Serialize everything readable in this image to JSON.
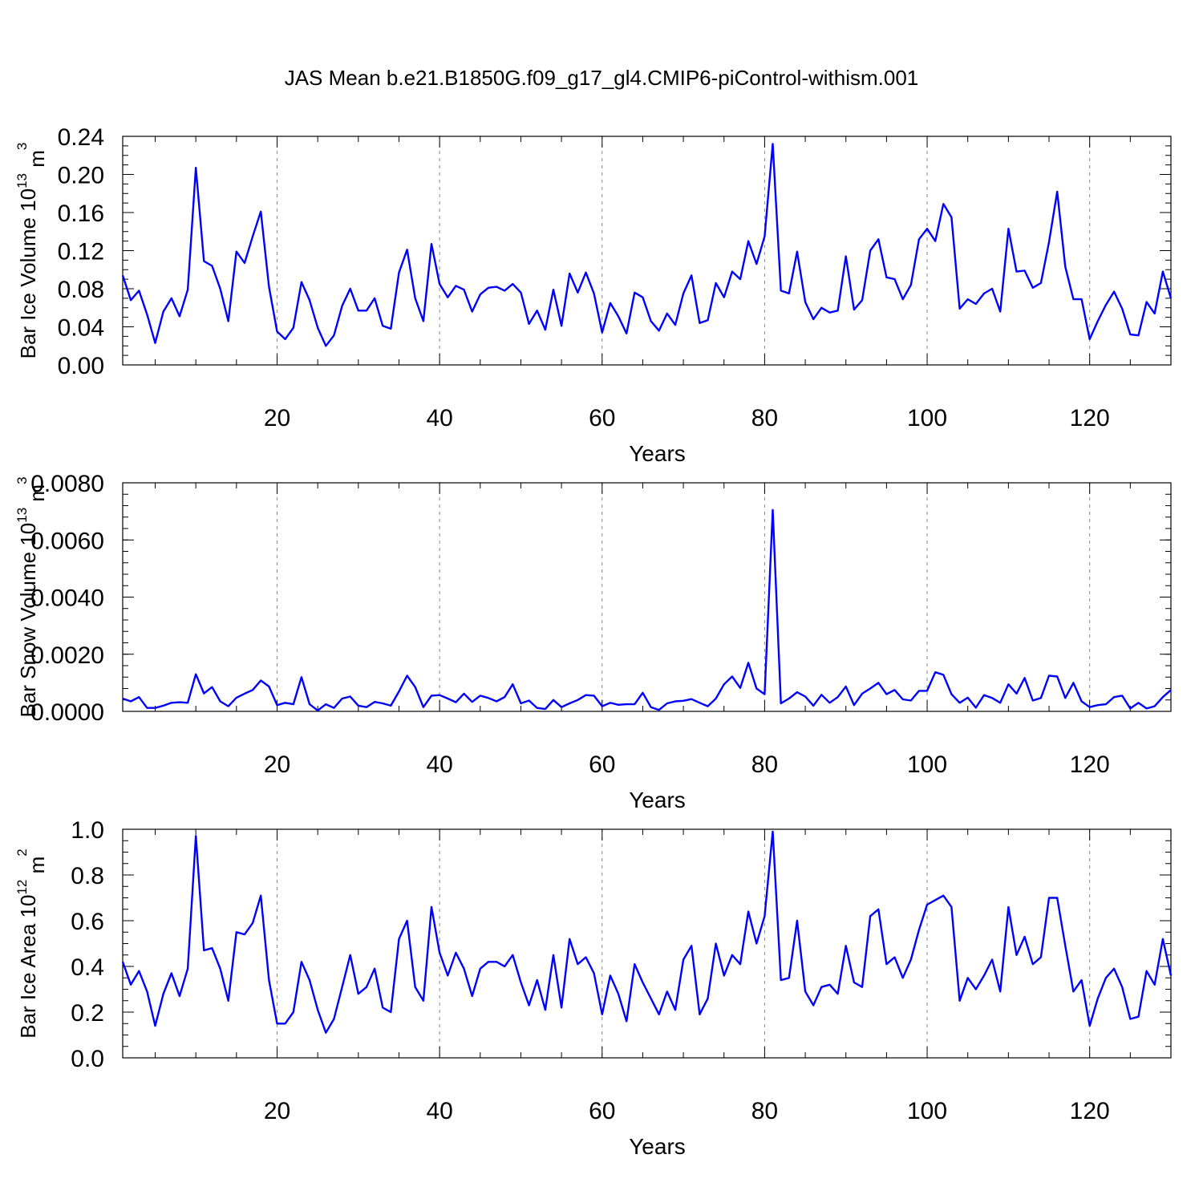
{
  "page": {
    "title": "JAS Mean b.e21.B1850G.f09_g17_gl4.CMIP6-piControl-withism.001"
  },
  "chart_data": [
    {
      "type": "line",
      "ylabel_main": "Bar Ice Volume 10",
      "ylabel_exp": "13",
      "ylabel_unit": " m",
      "ylabel_unit_exp": "3",
      "xlabel": "Years",
      "xlim": [
        1,
        130
      ],
      "ylim": [
        0,
        0.24
      ],
      "xticks": [
        20,
        40,
        60,
        80,
        100,
        120
      ],
      "yticks": [
        "0.00",
        "0.04",
        "0.08",
        "0.12",
        "0.16",
        "0.20",
        "0.24"
      ],
      "ytick_values": [
        0,
        0.04,
        0.08,
        0.12,
        0.16,
        0.2,
        0.24
      ],
      "minor_step": 0.01,
      "grid": "vertical dashed at x ticks",
      "color": "#0000ff",
      "values": [
        0.094,
        0.068,
        0.078,
        0.053,
        0.023,
        0.056,
        0.07,
        0.051,
        0.079,
        0.207,
        0.109,
        0.104,
        0.08,
        0.046,
        0.119,
        0.107,
        0.135,
        0.161,
        0.082,
        0.035,
        0.027,
        0.039,
        0.087,
        0.068,
        0.039,
        0.02,
        0.031,
        0.062,
        0.08,
        0.057,
        0.057,
        0.07,
        0.041,
        0.038,
        0.097,
        0.121,
        0.07,
        0.046,
        0.127,
        0.085,
        0.071,
        0.083,
        0.079,
        0.056,
        0.074,
        0.081,
        0.082,
        0.078,
        0.085,
        0.076,
        0.043,
        0.057,
        0.037,
        0.079,
        0.041,
        0.096,
        0.076,
        0.097,
        0.075,
        0.034,
        0.065,
        0.051,
        0.033,
        0.076,
        0.071,
        0.046,
        0.036,
        0.054,
        0.042,
        0.075,
        0.094,
        0.044,
        0.047,
        0.086,
        0.071,
        0.098,
        0.09,
        0.13,
        0.106,
        0.135,
        0.232,
        0.078,
        0.075,
        0.119,
        0.066,
        0.048,
        0.06,
        0.055,
        0.057,
        0.114,
        0.058,
        0.068,
        0.12,
        0.132,
        0.092,
        0.09,
        0.069,
        0.084,
        0.132,
        0.143,
        0.13,
        0.169,
        0.155,
        0.059,
        0.069,
        0.064,
        0.075,
        0.08,
        0.056,
        0.143,
        0.098,
        0.099,
        0.081,
        0.086,
        0.129,
        0.182,
        0.103,
        0.069,
        0.069,
        0.027,
        0.046,
        0.063,
        0.077,
        0.059,
        0.032,
        0.031,
        0.066,
        0.054,
        0.098,
        0.07
      ]
    },
    {
      "type": "line",
      "ylabel_main": "Bar Snow Volume 10",
      "ylabel_exp": "13",
      "ylabel_unit": " m",
      "ylabel_unit_exp": "3",
      "xlabel": "Years",
      "xlim": [
        1,
        130
      ],
      "ylim": [
        0,
        0.008
      ],
      "xticks": [
        20,
        40,
        60,
        80,
        100,
        120
      ],
      "yticks": [
        "0.0000",
        "0.0020",
        "0.0040",
        "0.0060",
        "0.0080"
      ],
      "ytick_values": [
        0,
        0.002,
        0.004,
        0.006,
        0.008
      ],
      "minor_step": 0.0004,
      "grid": "vertical dashed at x ticks",
      "color": "#0000ff",
      "values": [
        0.00045,
        0.00035,
        0.0005,
        0.00012,
        0.00012,
        0.0002,
        0.0003,
        0.00032,
        0.0003,
        0.0013,
        0.00063,
        0.00085,
        0.00035,
        0.00018,
        0.00048,
        0.00062,
        0.00075,
        0.00108,
        0.00087,
        0.00022,
        0.0003,
        0.00025,
        0.0012,
        0.00025,
        3e-05,
        0.00025,
        0.00012,
        0.00045,
        0.00052,
        0.0002,
        0.00015,
        0.00033,
        0.00028,
        0.0002,
        0.0007,
        0.00125,
        0.00085,
        0.00015,
        0.00055,
        0.00057,
        0.00045,
        0.00032,
        0.00062,
        0.00033,
        0.00055,
        0.00047,
        0.00035,
        0.0005,
        0.00095,
        0.00028,
        0.00038,
        0.00012,
        8e-05,
        0.0004,
        0.00015,
        0.00028,
        0.0004,
        0.00057,
        0.00055,
        0.00018,
        0.0003,
        0.00023,
        0.00025,
        0.00025,
        0.00065,
        0.00015,
        5e-05,
        0.00028,
        0.00035,
        0.00037,
        0.00043,
        0.0003,
        0.00018,
        0.00045,
        0.00095,
        0.00122,
        0.00082,
        0.0017,
        0.0008,
        0.0006,
        0.00705,
        0.00028,
        0.00045,
        0.00067,
        0.00052,
        0.0002,
        0.00058,
        0.0003,
        0.0005,
        0.00087,
        0.00022,
        0.00062,
        0.0008,
        0.001,
        0.0006,
        0.00075,
        0.00042,
        0.00038,
        0.00072,
        0.00072,
        0.00137,
        0.00128,
        0.0006,
        0.0003,
        0.00048,
        0.00013,
        0.00057,
        0.00047,
        0.0003,
        0.00095,
        0.00062,
        0.00117,
        0.00038,
        0.00047,
        0.00125,
        0.00122,
        0.00047,
        0.001,
        0.00035,
        0.00015,
        0.00022,
        0.00025,
        0.0005,
        0.00055,
        0.0001,
        0.0003,
        0.0001,
        0.00018,
        0.0005,
        0.00075
      ]
    },
    {
      "type": "line",
      "ylabel_main": "Bar Ice Area 10",
      "ylabel_exp": "12",
      "ylabel_unit": " m",
      "ylabel_unit_exp": "2",
      "xlabel": "Years",
      "xlim": [
        1,
        130
      ],
      "ylim": [
        0,
        1.0
      ],
      "xticks": [
        20,
        40,
        60,
        80,
        100,
        120
      ],
      "yticks": [
        "0.0",
        "0.2",
        "0.4",
        "0.6",
        "0.8",
        "1.0"
      ],
      "ytick_values": [
        0,
        0.2,
        0.4,
        0.6,
        0.8,
        1.0
      ],
      "minor_step": 0.05,
      "grid": "vertical dashed at x ticks",
      "color": "#0000ff",
      "values": [
        0.42,
        0.32,
        0.38,
        0.29,
        0.14,
        0.28,
        0.37,
        0.27,
        0.39,
        0.97,
        0.47,
        0.48,
        0.39,
        0.25,
        0.55,
        0.54,
        0.59,
        0.71,
        0.34,
        0.15,
        0.15,
        0.2,
        0.42,
        0.34,
        0.21,
        0.11,
        0.17,
        0.31,
        0.45,
        0.28,
        0.31,
        0.39,
        0.22,
        0.2,
        0.52,
        0.6,
        0.31,
        0.25,
        0.66,
        0.46,
        0.36,
        0.46,
        0.39,
        0.27,
        0.39,
        0.42,
        0.42,
        0.4,
        0.45,
        0.33,
        0.23,
        0.34,
        0.21,
        0.45,
        0.22,
        0.52,
        0.41,
        0.44,
        0.37,
        0.19,
        0.36,
        0.28,
        0.16,
        0.41,
        0.33,
        0.26,
        0.19,
        0.29,
        0.21,
        0.43,
        0.49,
        0.19,
        0.26,
        0.5,
        0.36,
        0.45,
        0.41,
        0.64,
        0.5,
        0.62,
        0.99,
        0.34,
        0.35,
        0.6,
        0.29,
        0.23,
        0.31,
        0.32,
        0.28,
        0.49,
        0.33,
        0.31,
        0.62,
        0.65,
        0.41,
        0.44,
        0.35,
        0.43,
        0.56,
        0.67,
        0.69,
        0.71,
        0.66,
        0.25,
        0.35,
        0.3,
        0.36,
        0.43,
        0.29,
        0.66,
        0.45,
        0.53,
        0.41,
        0.44,
        0.7,
        0.7,
        0.49,
        0.29,
        0.34,
        0.14,
        0.26,
        0.35,
        0.39,
        0.31,
        0.17,
        0.18,
        0.38,
        0.32,
        0.52,
        0.36
      ]
    }
  ]
}
